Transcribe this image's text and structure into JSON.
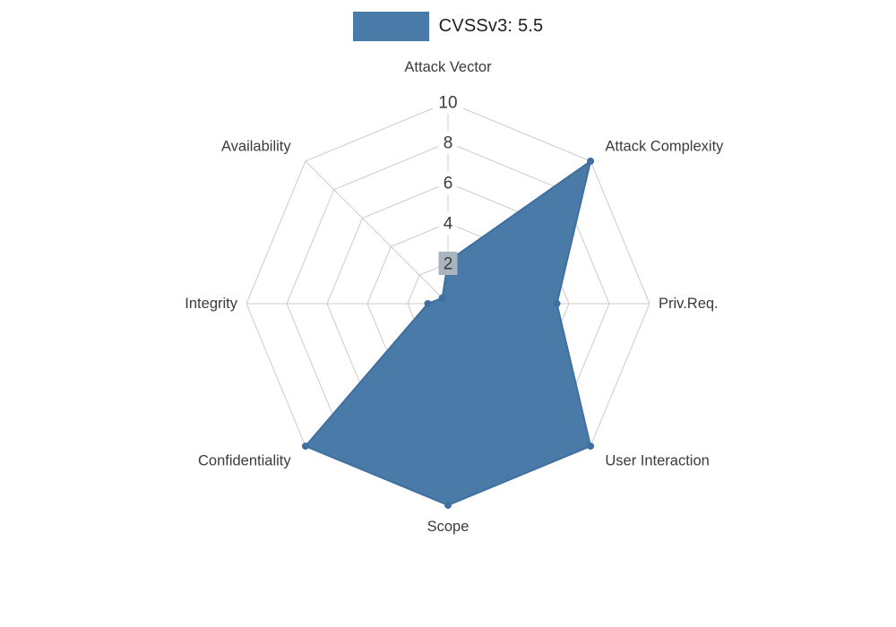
{
  "chart_data": {
    "type": "radar",
    "legend": "CVSSv3: 5.5",
    "categories": [
      "Attack Vector",
      "Attack Complexity",
      "Priv.Req.",
      "User Interaction",
      "Scope",
      "Confidentiality",
      "Integrity",
      "Availability"
    ],
    "values": [
      2.1,
      10,
      5.4,
      10,
      10,
      10,
      1.0,
      0.4
    ],
    "ylim": [
      0,
      10
    ],
    "rings": [
      2,
      4,
      6,
      8,
      10
    ],
    "ticks": [
      {
        "label": "10",
        "value": 10,
        "bg": "#ffffff"
      },
      {
        "label": "8",
        "value": 8,
        "bg": "#ffffff"
      },
      {
        "label": "6",
        "value": 6,
        "bg": "#ffffff"
      },
      {
        "label": "4",
        "value": 4,
        "bg": "#ffffff"
      },
      {
        "label": "2",
        "value": 2,
        "bg": "#a9b4bf"
      }
    ],
    "colors": {
      "fill": "#4a7ba8",
      "stroke": "#3f6f9e",
      "grid": "#cccccc",
      "axis_label": "#3b3b3b",
      "tick_label": "#3b3b3b"
    },
    "legend_position": "top-center",
    "grid": true
  }
}
